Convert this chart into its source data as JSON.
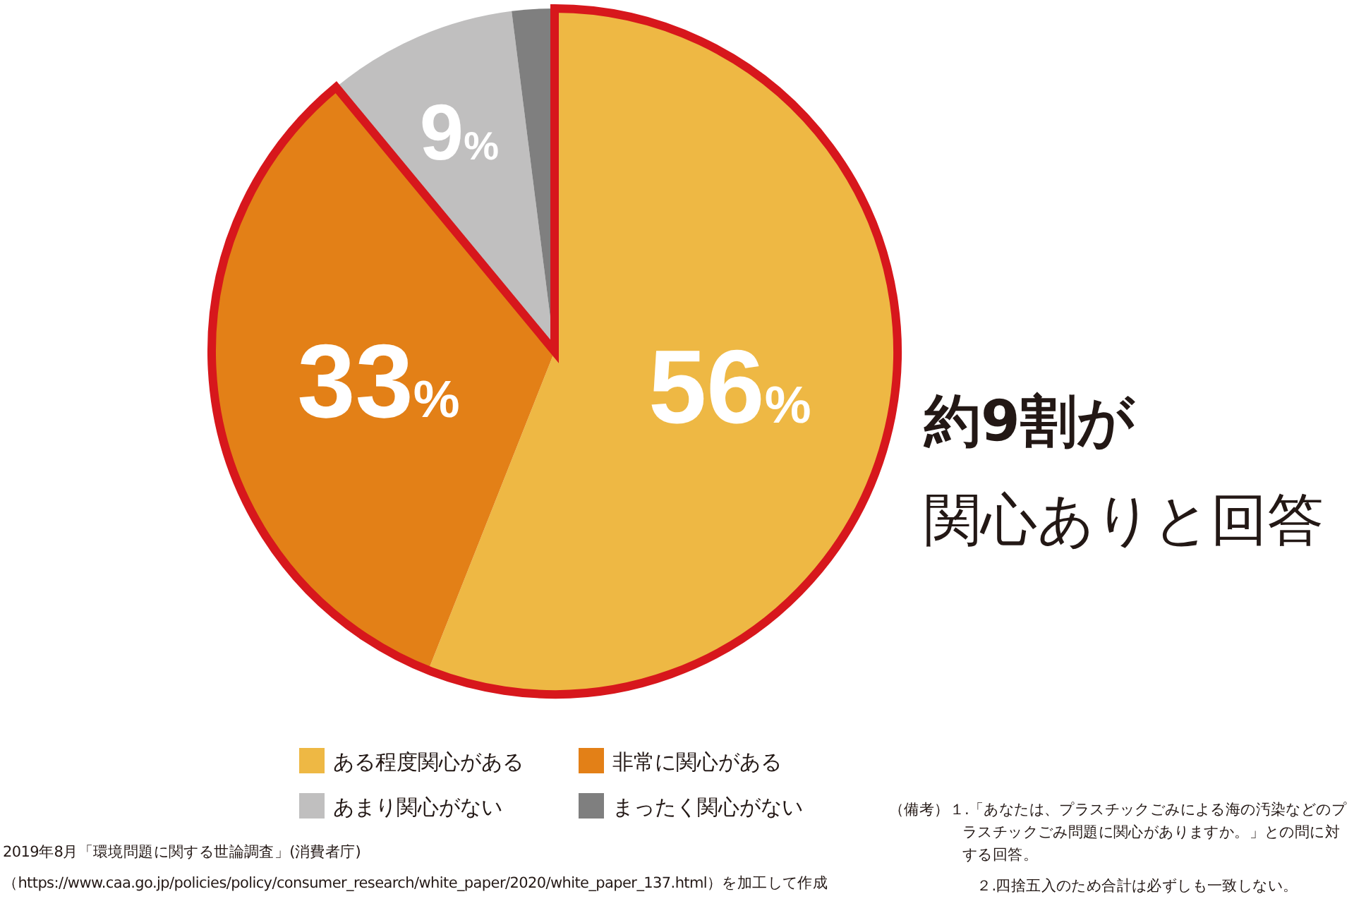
{
  "chart_data": {
    "type": "pie",
    "categories": [
      "ある程度関心がある",
      "非常に関心がある",
      "あまり関心がない",
      "まったく関心がない"
    ],
    "values": [
      56,
      33,
      9,
      2
    ],
    "colors": [
      "#eeb844",
      "#e38017",
      "#c0bfbf",
      "#7f7f7f"
    ],
    "value_labels": [
      "56%",
      "33%",
      "9%",
      null
    ],
    "legend": "bottom",
    "annotations": [
      "約9割が",
      "関心ありと回答",
      "2019年8月「環境問題に関する世論調査」(消費者庁)",
      "（https://www.caa.go.jp/policies/policy/consumer_research/white_paper/2020/white_paper_137.html）を加工して作成",
      "（備考）１.「あなたは、プラスチックごみによる海の汚染などのプラスチックごみ問題に関心がありますか。」との問に対する回答。",
      "２.四捨五入のため合計は必ずしも一致しない。"
    ]
  }
}
